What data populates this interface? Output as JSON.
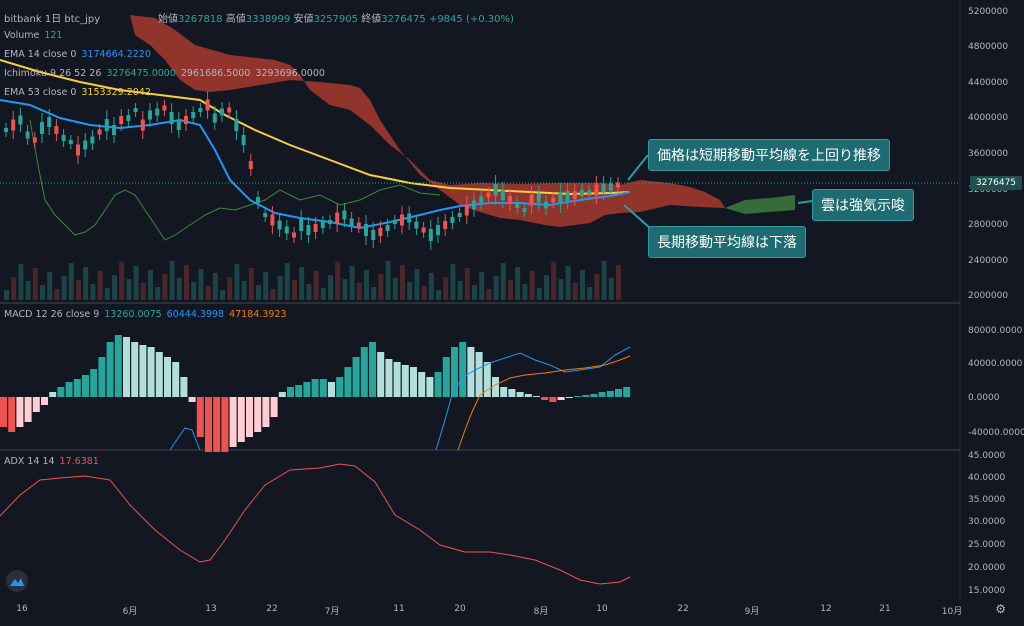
{
  "header": {
    "symbol": "bitbank  1日  btc_jpy",
    "open_label": "始値",
    "open": "3267818",
    "high_label": "高値",
    "high": "3338999",
    "low_label": "安値",
    "low": "3257905",
    "close_label": "終値",
    "close": "3276475",
    "change": "+9845 (+0.30%)"
  },
  "legends": {
    "volume": {
      "name": "Volume",
      "value": "121"
    },
    "ema14": {
      "name": "EMA 14 close 0",
      "value": "3174664.2220"
    },
    "ichimoku": {
      "name": "Ichimoku 9 26 52 26",
      "v1": "3276475.0000",
      "v2": "2961686.5000",
      "v3": "3293696.0000"
    },
    "ema53": {
      "name": "EMA 53 close 0",
      "value": "3153329.2042"
    },
    "macd": {
      "name": "MACD 12 26 close 9",
      "v1": "13260.0075",
      "v2": "60444.3998",
      "v3": "47184.3923"
    },
    "adx": {
      "name": "ADX 14 14",
      "value": "17.6381"
    }
  },
  "price_axis": [
    "5200000",
    "4800000",
    "4400000",
    "4000000",
    "3600000",
    "3200000",
    "2800000",
    "2400000",
    "2000000"
  ],
  "price_tag": "3276475",
  "macd_axis": [
    "80000.0000",
    "40000.0000",
    "0.0000",
    "-40000.0000"
  ],
  "adx_axis": [
    "45.0000",
    "40.0000",
    "35.0000",
    "30.0000",
    "25.0000",
    "20.0000",
    "15.0000"
  ],
  "x_axis": [
    "16",
    "6月",
    "13",
    "22",
    "7月",
    "11",
    "20",
    "8月",
    "10",
    "22",
    "9月",
    "12",
    "21",
    "10月"
  ],
  "callouts": {
    "short_ma": "価格は短期移動平均線を上回り推移",
    "cloud": "雲は強気示唆",
    "long_ma": "長期移動平均線は下落"
  },
  "colors": {
    "up": "#26a69a",
    "down": "#ef5350",
    "ema14": "#2196f3",
    "ema53": "#f4d03f",
    "cloud_bear": "#a83a2e",
    "cloud_bull": "#3e7a3e",
    "adx": "#ef5350"
  },
  "icons": {
    "logo": "tradingview-logo-icon",
    "settings": "gear-icon"
  }
}
